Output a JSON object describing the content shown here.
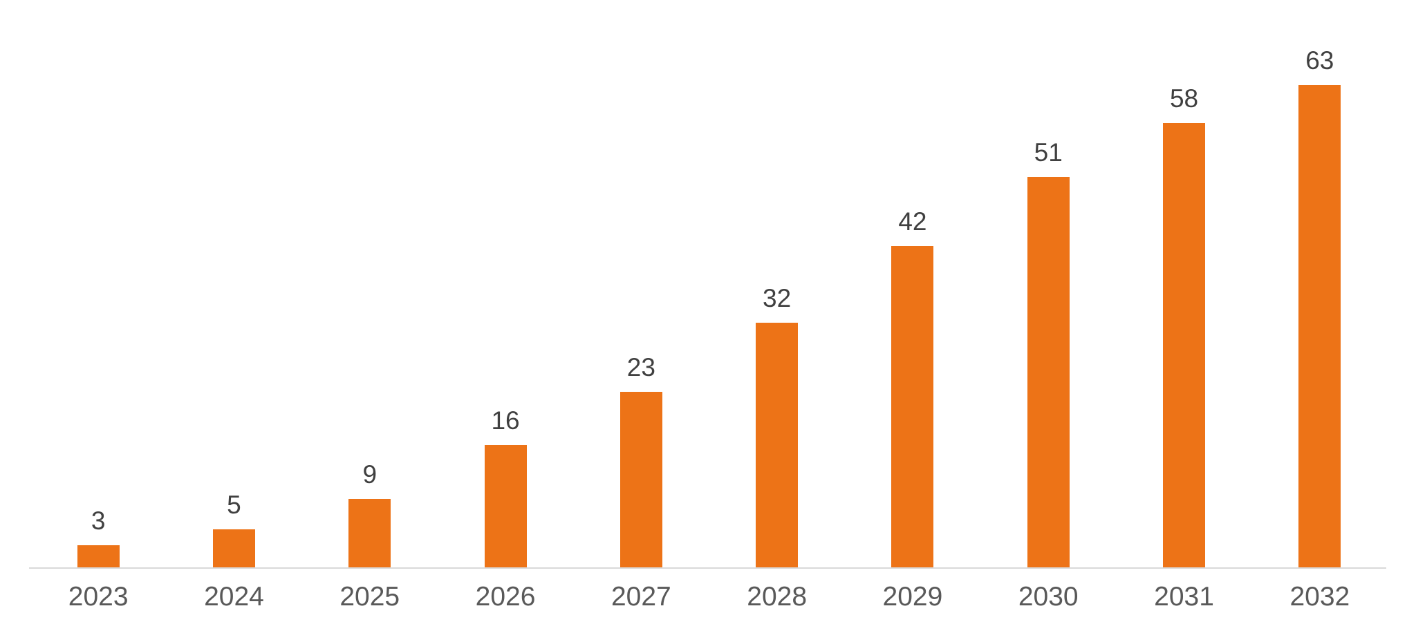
{
  "chart_data": {
    "type": "bar",
    "categories": [
      "2023",
      "2024",
      "2025",
      "2026",
      "2027",
      "2028",
      "2029",
      "2030",
      "2031",
      "2032"
    ],
    "values": [
      3,
      5,
      9,
      16,
      23,
      32,
      42,
      51,
      58,
      63
    ],
    "data_labels": "above-bars",
    "ylim": [
      0,
      70
    ],
    "grid": false,
    "legend": "none",
    "axis": {
      "x_axis_line": true,
      "y_axis_visible": false
    },
    "colors": {
      "bar": "#ED7317",
      "value_label": "#404040",
      "category_label": "#595959",
      "axis_line": "#D9D9D9",
      "background": "#FFFFFF"
    }
  }
}
